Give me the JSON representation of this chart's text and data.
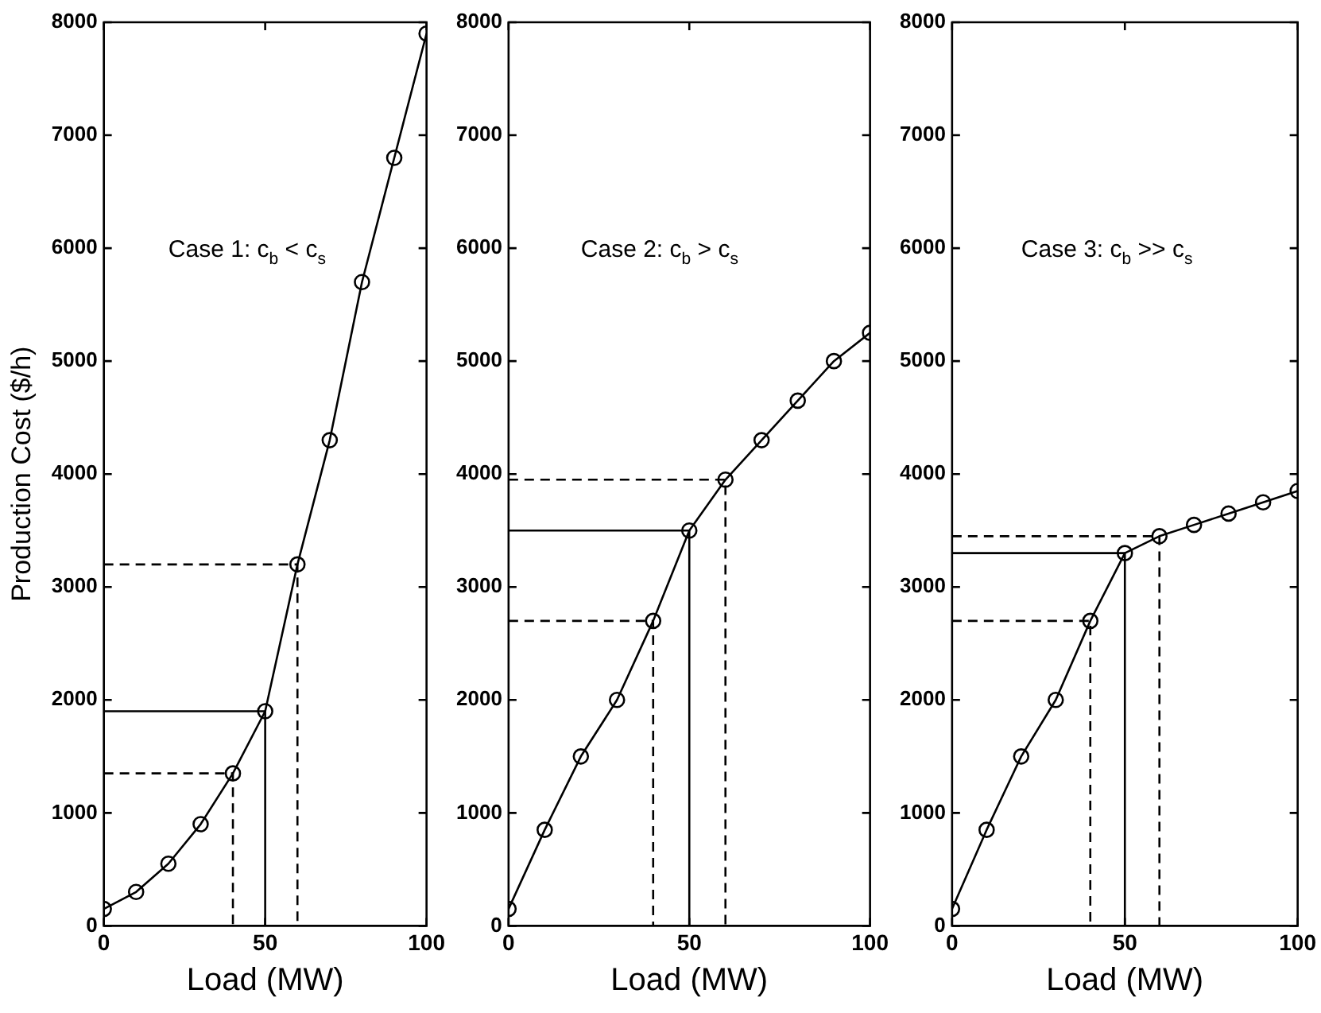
{
  "chart_data": [
    {
      "type": "line",
      "xlabel": "Load (MW)",
      "ylabel": "Production Cost ($/h)",
      "annotations": [
        "Case 1: c$_{b}$ < c$_{s}$"
      ],
      "xlim": [
        0,
        100
      ],
      "xticks": [
        0,
        50,
        100
      ],
      "ylim": [
        0,
        8000
      ],
      "yticks": [
        0,
        1000,
        2000,
        3000,
        4000,
        5000,
        6000,
        7000,
        8000
      ],
      "grid": false,
      "legend": false,
      "series": [
        {
          "color": "#000000",
          "marker": "circle",
          "line_style": "solid",
          "x": [
            0,
            10,
            20,
            30,
            40,
            50,
            60,
            70,
            80,
            90,
            100
          ],
          "values": [
            150,
            300,
            550,
            900,
            1350,
            1900,
            3200,
            4300,
            5700,
            6800,
            7900
          ]
        },
        {
          "color": "#000000",
          "marker": "none",
          "line_style": "dashed",
          "x": [
            0,
            40,
            40
          ],
          "values": [
            1350,
            1350,
            0
          ]
        },
        {
          "color": "#000000",
          "marker": "none",
          "line_style": "solid",
          "x": [
            0,
            50,
            50
          ],
          "values": [
            1900,
            1900,
            0
          ]
        },
        {
          "color": "#000000",
          "marker": "none",
          "line_style": "dashed",
          "x": [
            0,
            60,
            60
          ],
          "values": [
            3200,
            3200,
            0
          ]
        }
      ]
    },
    {
      "type": "line",
      "xlabel": "Load (MW)",
      "annotations": [
        "Case 2: c$_{b}$ > c$_{s}$"
      ],
      "xlim": [
        0,
        100
      ],
      "xticks": [
        0,
        50,
        100
      ],
      "ylim": [
        0,
        8000
      ],
      "yticks": [
        0,
        1000,
        2000,
        3000,
        4000,
        5000,
        6000,
        7000,
        8000
      ],
      "grid": false,
      "legend": false,
      "series": [
        {
          "color": "#000000",
          "marker": "circle",
          "line_style": "solid",
          "x": [
            0,
            10,
            20,
            30,
            40,
            50,
            60,
            70,
            80,
            90,
            100
          ],
          "values": [
            150,
            850,
            1500,
            2000,
            2700,
            3500,
            3950,
            4300,
            4650,
            5000,
            5250
          ]
        },
        {
          "color": "#000000",
          "marker": "none",
          "line_style": "dashed",
          "x": [
            0,
            40,
            40
          ],
          "values": [
            2700,
            2700,
            0
          ]
        },
        {
          "color": "#000000",
          "marker": "none",
          "line_style": "solid",
          "x": [
            0,
            50,
            50
          ],
          "values": [
            3500,
            3500,
            0
          ]
        },
        {
          "color": "#000000",
          "marker": "none",
          "line_style": "dashed",
          "x": [
            0,
            60,
            60
          ],
          "values": [
            3950,
            3950,
            0
          ]
        }
      ]
    },
    {
      "type": "line",
      "xlabel": "Load (MW)",
      "annotations": [
        "Case 3: c$_{b}$ >> c$_{s}$"
      ],
      "xlim": [
        0,
        100
      ],
      "xticks": [
        0,
        50,
        100
      ],
      "ylim": [
        0,
        8000
      ],
      "yticks": [
        0,
        1000,
        2000,
        3000,
        4000,
        5000,
        6000,
        7000,
        8000
      ],
      "grid": false,
      "legend": false,
      "series": [
        {
          "color": "#000000",
          "marker": "circle",
          "line_style": "solid",
          "x": [
            0,
            10,
            20,
            30,
            40,
            50,
            60,
            70,
            80,
            90,
            100
          ],
          "values": [
            150,
            850,
            1500,
            2000,
            2700,
            3300,
            3450,
            3550,
            3650,
            3750,
            3850
          ]
        },
        {
          "color": "#000000",
          "marker": "none",
          "line_style": "dashed",
          "x": [
            0,
            40,
            40
          ],
          "values": [
            2700,
            2700,
            0
          ]
        },
        {
          "color": "#000000",
          "marker": "none",
          "line_style": "solid",
          "x": [
            0,
            50,
            50
          ],
          "values": [
            3300,
            3300,
            0
          ]
        },
        {
          "color": "#000000",
          "marker": "none",
          "line_style": "dashed",
          "x": [
            0,
            60,
            60
          ],
          "values": [
            3450,
            3450,
            0
          ]
        }
      ]
    }
  ]
}
